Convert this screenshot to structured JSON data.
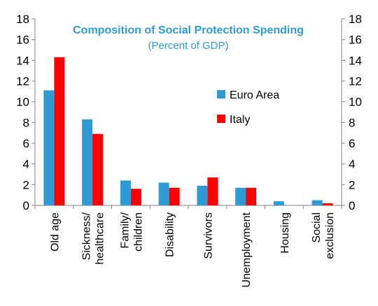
{
  "chart_data": {
    "type": "bar",
    "title": "Composition of Social Protection Spending",
    "subtitle": "(Percent of GDP)",
    "categories": [
      [
        "Old age"
      ],
      [
        "Sickness/",
        "healthcare"
      ],
      [
        "Family/",
        "children"
      ],
      [
        "Disability"
      ],
      [
        "Survivors"
      ],
      [
        "Unemployment"
      ],
      [
        "Housing"
      ],
      [
        "Social",
        "exclusion"
      ]
    ],
    "series": [
      {
        "name": "Euro Area",
        "color": "#2e9bd6",
        "values": [
          11.1,
          8.3,
          2.4,
          2.2,
          1.9,
          1.7,
          0.4,
          0.5
        ]
      },
      {
        "name": "Italy",
        "color": "#ff0000",
        "values": [
          14.3,
          6.9,
          1.6,
          1.7,
          2.7,
          1.7,
          0.0,
          0.2
        ]
      }
    ],
    "ylim": [
      0,
      18
    ],
    "yticks": [
      0,
      2,
      4,
      6,
      8,
      10,
      12,
      14,
      16,
      18
    ],
    "y_axis_both_sides": true,
    "grid": false,
    "legend_position": "right-center"
  }
}
